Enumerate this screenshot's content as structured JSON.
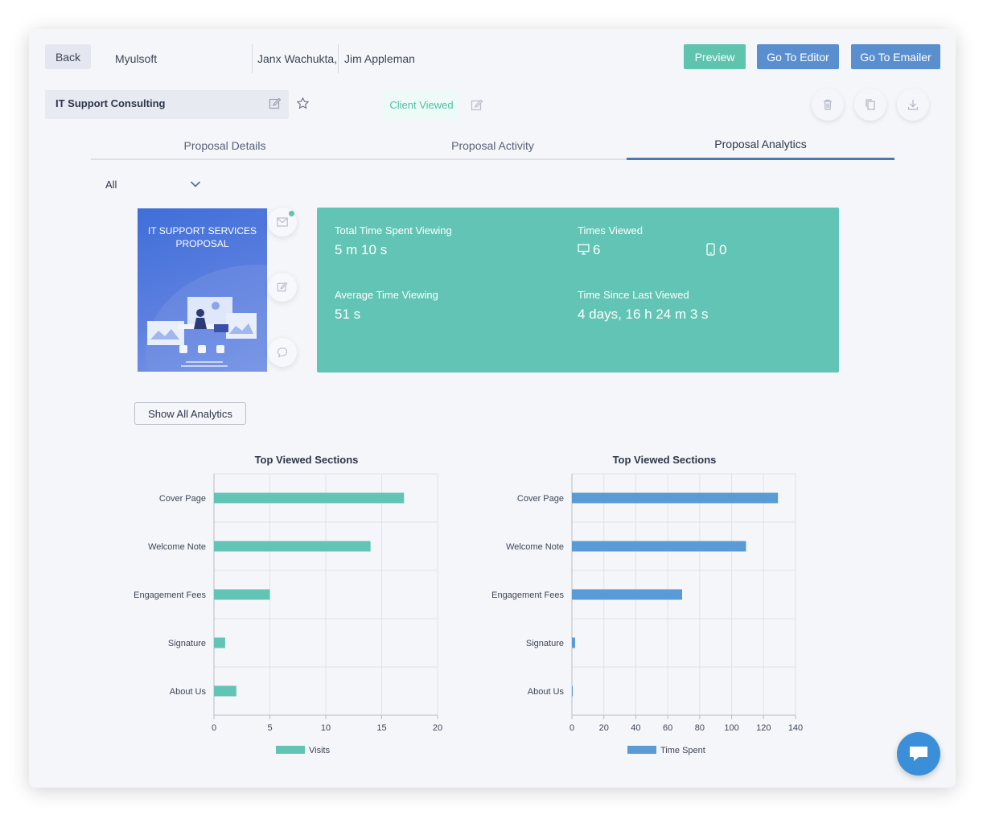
{
  "header": {
    "back_label": "Back",
    "company": "Myulsoft",
    "contact_1": "Janx Wachukta,",
    "contact_2": "Jim Appleman",
    "preview_label": "Preview",
    "editor_label": "Go To Editor",
    "emailer_label": "Go To Emailer"
  },
  "proposal": {
    "title": "IT Support Consulting",
    "status": "Client Viewed"
  },
  "tabs": [
    {
      "label": "Proposal Details",
      "active": false
    },
    {
      "label": "Proposal Activity",
      "active": false
    },
    {
      "label": "Proposal Analytics",
      "active": true
    }
  ],
  "filter": {
    "selected": "All"
  },
  "thumbnail": {
    "title_line1": "IT SUPPORT SERVICES",
    "title_line2": "PROPOSAL"
  },
  "stats": {
    "total_time_label": "Total Time Spent Viewing",
    "total_time_value": "5 m 10 s",
    "times_viewed_label": "Times Viewed",
    "desktop_views": "6",
    "mobile_views": "0",
    "avg_time_label": "Average Time Viewing",
    "avg_time_value": "51 s",
    "since_last_label": "Time Since Last Viewed",
    "since_last_value": "4 days, 16 h 24 m 3 s"
  },
  "show_all_label": "Show All Analytics",
  "colors": {
    "accent_teal": "#62c4b4",
    "accent_blue": "#5b9bd5",
    "button_blue": "#5a8fcf",
    "preview_green": "#5ec4ad",
    "chat_blue": "#3b8fd9"
  },
  "chart_data": [
    {
      "type": "bar",
      "orientation": "horizontal",
      "title": "Top Viewed Sections",
      "categories": [
        "Cover Page",
        "Welcome Note",
        "Engagement Fees",
        "Signature",
        "About Us"
      ],
      "series": [
        {
          "name": "Visits",
          "values": [
            17,
            14,
            5,
            1,
            2
          ],
          "color": "#62c4b4"
        }
      ],
      "xlim": [
        0,
        20
      ],
      "xticks": [
        0,
        5,
        10,
        15,
        20
      ],
      "grid": true,
      "legend": "bottom"
    },
    {
      "type": "bar",
      "orientation": "horizontal",
      "title": "Top Viewed Sections",
      "categories": [
        "Cover Page",
        "Welcome Note",
        "Engagement Fees",
        "Signature",
        "About Us"
      ],
      "series": [
        {
          "name": "Time Spent",
          "values": [
            129,
            109,
            69,
            2,
            0.5
          ],
          "color": "#5b9bd5"
        }
      ],
      "xlim": [
        0,
        140
      ],
      "xticks": [
        0,
        20,
        40,
        60,
        80,
        100,
        120,
        140
      ],
      "grid": true,
      "legend": "bottom"
    }
  ]
}
